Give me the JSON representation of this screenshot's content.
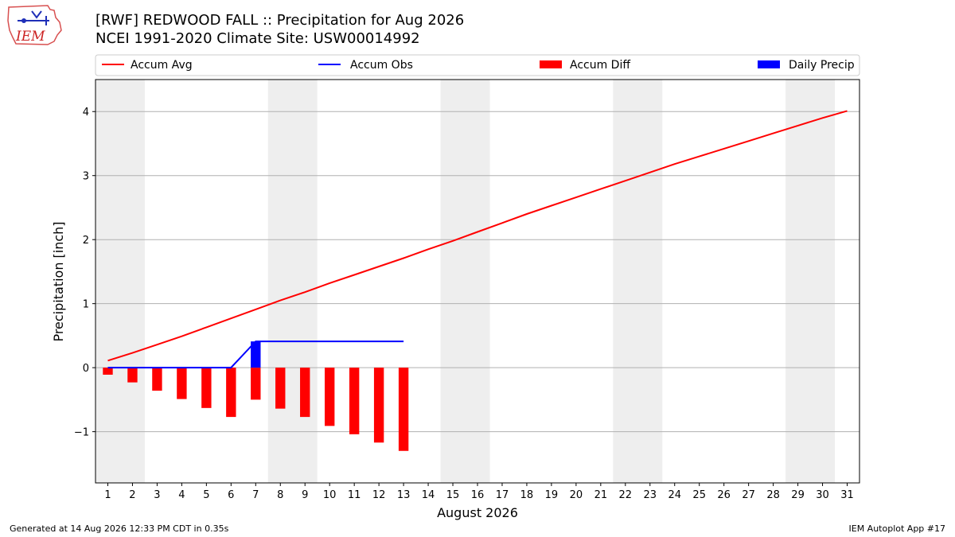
{
  "header": {
    "title_line1": "[RWF] REDWOOD FALL :: Precipitation for Aug 2026",
    "title_line2": "NCEI 1991-2020 Climate Site: USW00014992",
    "logo_text": "IEM"
  },
  "footer": {
    "left": "Generated at 14 Aug 2026 12:33 PM CDT in 0.35s",
    "right": "IEM Autoplot App #17"
  },
  "colors": {
    "avg": "#ff0000",
    "obs": "#0000ff",
    "diff": "#ff0000",
    "daily": "#0000ff",
    "weekend_shade": "#eeeeee",
    "grid": "#b0b0b0"
  },
  "chart_data": {
    "type": "bar",
    "xlabel": "August 2026",
    "ylabel": "Precipitation [inch]",
    "xlim": [
      0.5,
      31.5
    ],
    "ylim": [
      -1.8,
      4.5
    ],
    "y_ticks": [
      -1,
      0,
      1,
      2,
      3,
      4
    ],
    "y_tick_labels": [
      "−1",
      "0",
      "1",
      "2",
      "3",
      "4"
    ],
    "grid": "horizontal",
    "legend_position": "top",
    "x_ticks": [
      1,
      2,
      3,
      4,
      5,
      6,
      7,
      8,
      9,
      10,
      11,
      12,
      13,
      14,
      15,
      16,
      17,
      18,
      19,
      20,
      21,
      22,
      23,
      24,
      25,
      26,
      27,
      28,
      29,
      30,
      31
    ],
    "shaded_days": [
      [
        1,
        2
      ],
      [
        8,
        9
      ],
      [
        15,
        16
      ],
      [
        22,
        23
      ],
      [
        29,
        30
      ]
    ],
    "series": [
      {
        "name": "Accum Avg",
        "kind": "line",
        "x": [
          1,
          2,
          3,
          4,
          5,
          6,
          7,
          8,
          9,
          10,
          11,
          12,
          13,
          14,
          15,
          16,
          17,
          18,
          19,
          20,
          21,
          22,
          23,
          24,
          25,
          26,
          27,
          28,
          29,
          30,
          31
        ],
        "values": [
          0.11,
          0.23,
          0.36,
          0.49,
          0.63,
          0.77,
          0.91,
          1.05,
          1.18,
          1.32,
          1.45,
          1.58,
          1.71,
          1.85,
          1.98,
          2.12,
          2.26,
          2.4,
          2.53,
          2.66,
          2.79,
          2.92,
          3.05,
          3.18,
          3.3,
          3.42,
          3.54,
          3.66,
          3.78,
          3.9,
          4.01
        ]
      },
      {
        "name": "Accum Obs",
        "kind": "line",
        "x": [
          1,
          2,
          3,
          4,
          5,
          6,
          7,
          8,
          9,
          10,
          11,
          12,
          13
        ],
        "values": [
          0,
          0,
          0,
          0,
          0,
          0,
          0.41,
          0.41,
          0.41,
          0.41,
          0.41,
          0.41,
          0.41
        ]
      },
      {
        "name": "Accum Diff",
        "kind": "bar",
        "x": [
          1,
          2,
          3,
          4,
          5,
          6,
          7,
          8,
          9,
          10,
          11,
          12,
          13
        ],
        "values": [
          -0.11,
          -0.23,
          -0.36,
          -0.49,
          -0.63,
          -0.77,
          -0.5,
          -0.64,
          -0.77,
          -0.91,
          -1.04,
          -1.17,
          -1.3
        ]
      },
      {
        "name": "Daily Precip",
        "kind": "bar",
        "x": [
          1,
          2,
          3,
          4,
          5,
          6,
          7,
          8,
          9,
          10,
          11,
          12,
          13
        ],
        "values": [
          0,
          0,
          0,
          0,
          0,
          0,
          0.41,
          0,
          0,
          0,
          0,
          0,
          0
        ]
      }
    ]
  }
}
